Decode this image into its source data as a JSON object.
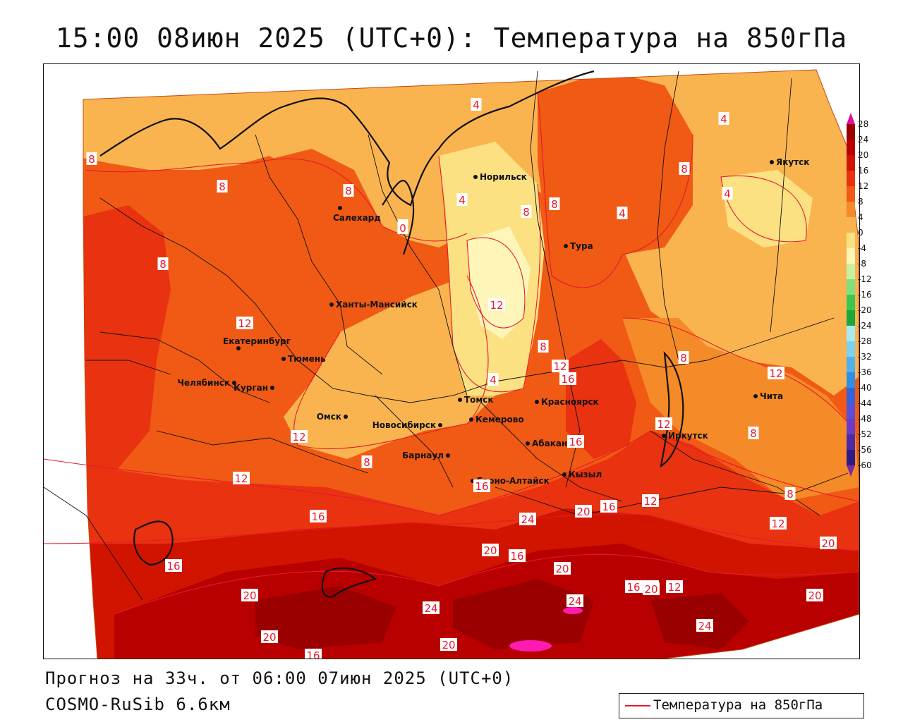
{
  "title": "15:00 08июн 2025 (UTC+0): Температура на 850гПа",
  "forecast": "Прогноз на 33ч. от 06:00 07июн 2025 (UTC+0)",
  "model": "COSMO-RuSib 6.6км",
  "legend_label": "Температура на 850гПа",
  "colorbar": {
    "labels": [
      "28",
      "24",
      "20",
      "16",
      "12",
      "8",
      "4",
      "0",
      "-4",
      "-8",
      "-12",
      "-16",
      "-20",
      "-24",
      "-28",
      "-32",
      "-36",
      "-40",
      "-44",
      "-48",
      "-52",
      "-56",
      "-60"
    ],
    "colors": [
      "#9b0000",
      "#b80000",
      "#d01400",
      "#e83210",
      "#f05a14",
      "#f58a28",
      "#f9b450",
      "#fce183",
      "#fdf6b8",
      "#c8f0a0",
      "#7ee07e",
      "#3cc850",
      "#1aa83c",
      "#a8eaf0",
      "#7ad2f0",
      "#4fb2ee",
      "#2f8ee6",
      "#3064d8",
      "#5a50d8",
      "#6a3cc8",
      "#4a2aa8",
      "#2c1a88",
      "#7a2aa0"
    ]
  },
  "cities": [
    {
      "name": "Норильск"
    },
    {
      "name": "Якутск"
    },
    {
      "name": "Салехард"
    },
    {
      "name": "Тура"
    },
    {
      "name": "Ханты-Мансийск"
    },
    {
      "name": "Екатеринбург"
    },
    {
      "name": "Тюмень"
    },
    {
      "name": "Челябинск"
    },
    {
      "name": "Курган"
    },
    {
      "name": "Омск"
    },
    {
      "name": "Новосибирск"
    },
    {
      "name": "Томск"
    },
    {
      "name": "Кемерово"
    },
    {
      "name": "Красноярск"
    },
    {
      "name": "Барнаул"
    },
    {
      "name": "Абакан"
    },
    {
      "name": "Горно-Алтайск"
    },
    {
      "name": "Кызыл"
    },
    {
      "name": "Иркутск"
    },
    {
      "name": "Чита"
    }
  ],
  "isotherm_labels": [
    "4",
    "4",
    "8",
    "8",
    "8",
    "8",
    "4",
    "8",
    "8",
    "4",
    "8",
    "4",
    "8",
    "12",
    "12",
    "0",
    "8",
    "12",
    "16",
    "8",
    "12",
    "4",
    "12",
    "8",
    "8",
    "12",
    "16",
    "12",
    "16",
    "16",
    "20",
    "24",
    "20",
    "16",
    "16",
    "12",
    "16",
    "20",
    "20",
    "16",
    "20",
    "12",
    "20",
    "20",
    "20",
    "24",
    "24",
    "20",
    "24",
    "16",
    "20",
    "12",
    "8"
  ]
}
